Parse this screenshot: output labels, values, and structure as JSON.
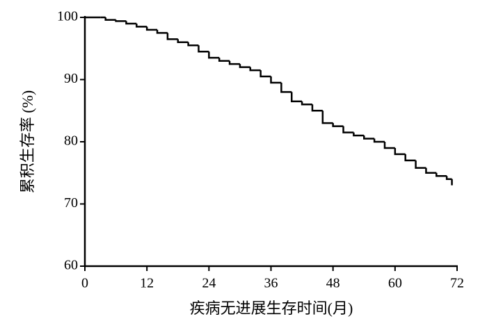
{
  "chart_data": {
    "type": "step",
    "x_label": "疾病无进展生存时间(月)",
    "y_label": "累积生存率 (%)",
    "color": "#000000",
    "x": [
      0,
      3,
      4,
      6,
      8,
      10,
      12,
      14,
      16,
      18,
      20,
      22,
      24,
      26,
      28,
      30,
      32,
      34,
      36,
      38,
      40,
      42,
      44,
      46,
      48,
      50,
      52,
      54,
      56,
      58,
      60,
      62,
      64,
      66,
      68,
      70,
      71
    ],
    "values": [
      100,
      100,
      99.6,
      99.4,
      99,
      98.5,
      98,
      97.5,
      96.5,
      96,
      95.5,
      94.5,
      93.5,
      93,
      92.5,
      92,
      91.5,
      90.5,
      89.5,
      88,
      86.5,
      86,
      85,
      83,
      82.5,
      81.5,
      81,
      80.5,
      80,
      79,
      78,
      77,
      75.8,
      75,
      74.5,
      74,
      73
    ],
    "xlim": [
      0,
      72
    ],
    "xticks": [
      0,
      12,
      24,
      36,
      48,
      60,
      72
    ],
    "ylim": [
      60,
      100
    ],
    "yticks": [
      60,
      70,
      80,
      90,
      100
    ]
  }
}
